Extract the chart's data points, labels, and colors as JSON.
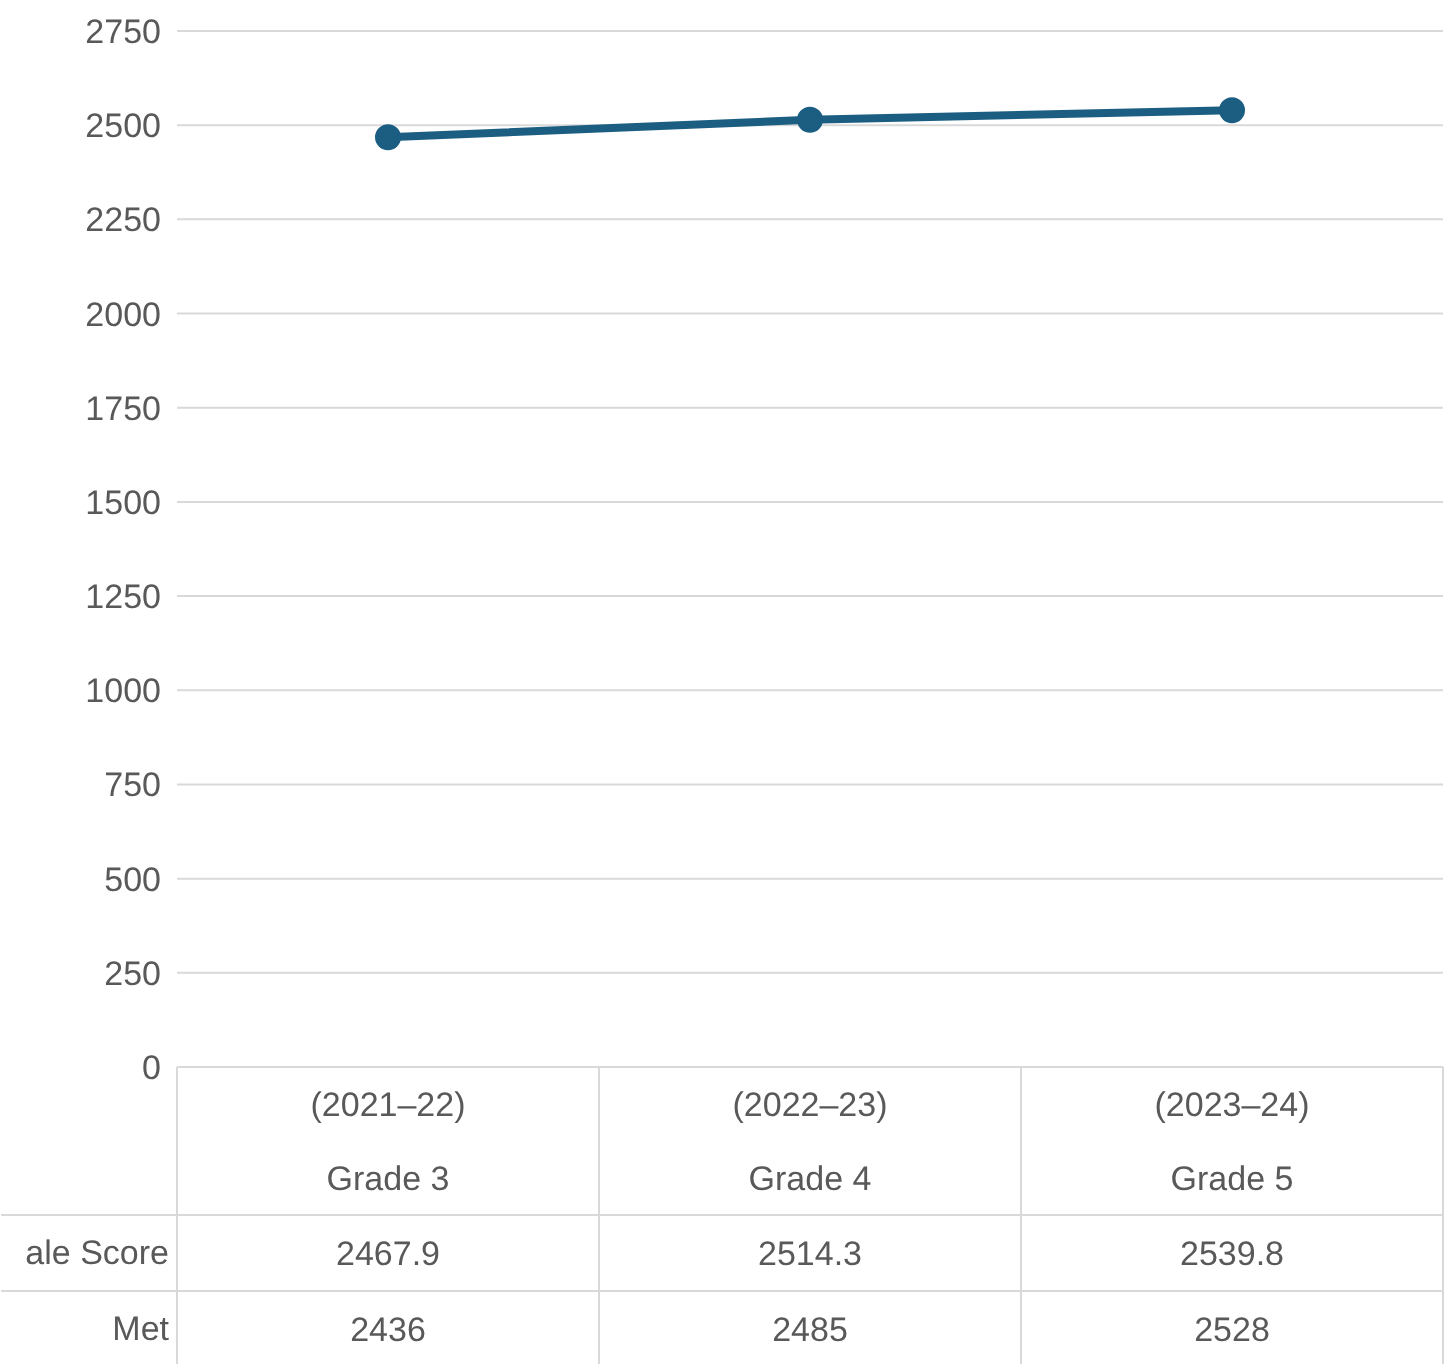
{
  "chart_data": {
    "type": "line",
    "categories": [
      "(2021–22)\nGrade 3",
      "(2022–23)\nGrade 4",
      "(2023–24)\nGrade 5"
    ],
    "series": [
      {
        "name": "ale Score",
        "color": "#1b5e82",
        "values": [
          2467.9,
          2514.3,
          2539.8
        ]
      }
    ],
    "annotations": [
      "Met",
      "2436",
      "2485",
      "2528"
    ],
    "ylim": [
      0,
      2750
    ],
    "yticks": [
      0,
      250,
      500,
      750,
      1000,
      1250,
      1500,
      1750,
      2000,
      2250,
      2500,
      2750
    ],
    "grid": "y",
    "legend": false,
    "marker": "circle",
    "line_style": "solid",
    "data_labels": true
  }
}
